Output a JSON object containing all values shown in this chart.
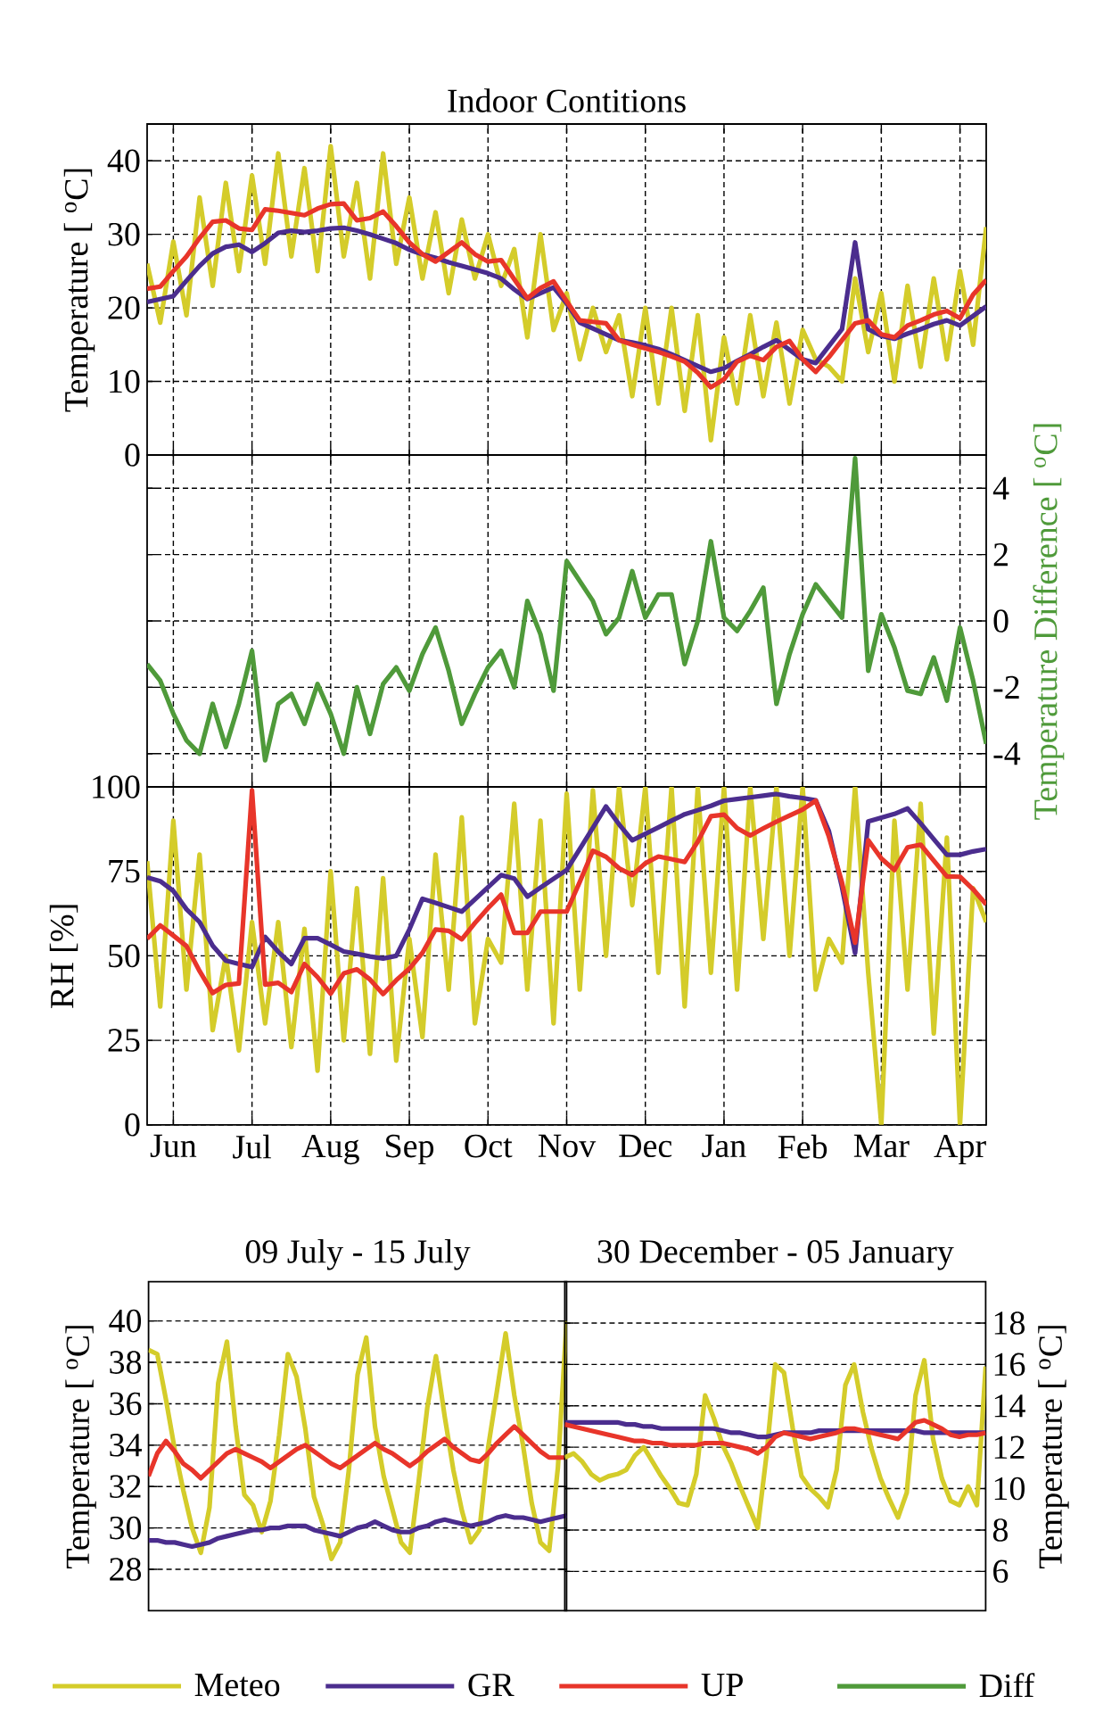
{
  "chart_data": [
    {
      "type": "line",
      "title": "Indoor Contitions",
      "ylabel": "Temperature [ $^{o}$C]",
      "ylim": [
        0,
        45
      ],
      "yticks": [
        0,
        10,
        20,
        30,
        40
      ],
      "categories": [
        null,
        null,
        null,
        null,
        null,
        null,
        null,
        null,
        null,
        null,
        null,
        null,
        null,
        null,
        null,
        null,
        null,
        null,
        null,
        null,
        null,
        null,
        null,
        null,
        null,
        null,
        null,
        null,
        null,
        null,
        null,
        null,
        null,
        null,
        null,
        null,
        null,
        null,
        null,
        null,
        null,
        null,
        null,
        null,
        null,
        null,
        null,
        null,
        null,
        null,
        null,
        null,
        null,
        null,
        null,
        null,
        null,
        null,
        null,
        null,
        null,
        null,
        null,
        null,
        null
      ],
      "grid": true,
      "tick_labels": "y",
      "legend": "bottom",
      "marker": "none",
      "line_style": "solid",
      "series": [
        {
          "name": "Meteo",
          "color": "#d4cc2a",
          "values": [
            26,
            18,
            29,
            19,
            35,
            23,
            37,
            25,
            38,
            26,
            41,
            27,
            39,
            25,
            42,
            27,
            37,
            24,
            41,
            26,
            35,
            24,
            33,
            22,
            32,
            24,
            30,
            23,
            28,
            16,
            30,
            17,
            22,
            13,
            20,
            14,
            19,
            8,
            20,
            7,
            20,
            6,
            19,
            2,
            16,
            7,
            19,
            8,
            18,
            7,
            17,
            13,
            12,
            10,
            24,
            14,
            22,
            10,
            23,
            12,
            24,
            13,
            25,
            15,
            31
          ]
        },
        {
          "name": "GR",
          "color": "#4b2d8e",
          "values": [
            20.8,
            21.2,
            21.6,
            23.7,
            25.7,
            27.4,
            28.3,
            28.6,
            27.6,
            28.8,
            30.2,
            30.5,
            30.3,
            30.5,
            30.8,
            30.9,
            30.5,
            30.0,
            29.4,
            28.8,
            27.9,
            27.3,
            26.8,
            26.2,
            25.7,
            25.2,
            24.7,
            24.0,
            22.5,
            21.2,
            22.0,
            22.8,
            20.6,
            18.0,
            17.2,
            16.4,
            15.6,
            15.3,
            14.9,
            14.4,
            13.7,
            12.9,
            12.1,
            11.3,
            11.8,
            12.8,
            13.7,
            14.7,
            15.6,
            14.3,
            13.0,
            12.5,
            14.8,
            17.1,
            28.9,
            17.1,
            16.2,
            15.8,
            16.5,
            17.1,
            17.8,
            18.3,
            17.6,
            18.9,
            20.2
          ]
        },
        {
          "name": "UP",
          "color": "#e8352a",
          "values": [
            22.6,
            22.9,
            25.0,
            27.0,
            29.5,
            31.7,
            31.9,
            30.8,
            30.6,
            33.4,
            33.2,
            32.9,
            32.6,
            33.5,
            34.1,
            34.2,
            31.9,
            32.2,
            33.1,
            31.1,
            28.9,
            27.3,
            26.3,
            27.6,
            28.9,
            27.3,
            26.3,
            26.5,
            23.9,
            21.3,
            22.7,
            23.6,
            20.9,
            18.3,
            18.1,
            17.9,
            15.6,
            15.0,
            14.5,
            14.0,
            13.4,
            12.7,
            11.2,
            9.2,
            10.3,
            12.7,
            13.5,
            12.9,
            14.7,
            15.5,
            13.0,
            11.3,
            13.3,
            15.6,
            17.9,
            18.3,
            16.4,
            16.0,
            17.6,
            18.3,
            19.1,
            19.6,
            18.6,
            21.8,
            23.8
          ]
        }
      ]
    },
    {
      "type": "line",
      "ylabel": "Temperature Difference [ $^{o}$C]",
      "ylim": [
        -5,
        5
      ],
      "yticks": [
        -4,
        -2,
        0,
        2,
        4
      ],
      "categories": [
        null,
        null,
        null,
        null,
        null,
        null,
        null,
        null,
        null,
        null,
        null,
        null,
        null,
        null,
        null,
        null,
        null,
        null,
        null,
        null,
        null,
        null,
        null,
        null,
        null,
        null,
        null,
        null,
        null,
        null,
        null,
        null,
        null,
        null,
        null,
        null,
        null,
        null,
        null,
        null,
        null,
        null,
        null,
        null,
        null,
        null,
        null,
        null,
        null,
        null,
        null,
        null,
        null,
        null,
        null,
        null,
        null,
        null,
        null,
        null,
        null,
        null,
        null,
        null,
        null
      ],
      "grid": true,
      "tick_labels": "y",
      "legend": "bottom",
      "marker": "none",
      "line_style": "solid",
      "series": [
        {
          "name": "Diff",
          "color": "#4f9a3a",
          "values": [
            -1.3,
            -1.8,
            -2.8,
            -3.6,
            -4.0,
            -2.5,
            -3.8,
            -2.5,
            -0.9,
            -4.2,
            -2.5,
            -2.2,
            -3.1,
            -1.9,
            -2.8,
            -4.0,
            -2.0,
            -3.4,
            -1.9,
            -1.4,
            -2.1,
            -1.0,
            -0.2,
            -1.5,
            -3.1,
            -2.2,
            -1.4,
            -0.9,
            -2.0,
            0.6,
            -0.4,
            -2.1,
            1.8,
            1.2,
            0.6,
            -0.4,
            0.1,
            1.5,
            0.1,
            0.8,
            0.8,
            -1.3,
            0.0,
            2.4,
            0.1,
            -0.3,
            0.3,
            1.0,
            -2.5,
            -1.0,
            0.2,
            1.1,
            0.6,
            0.1,
            4.9,
            -1.5,
            0.2,
            -0.8,
            -2.1,
            -2.2,
            -1.1,
            -2.4,
            -0.2,
            -1.8,
            -3.7
          ]
        }
      ]
    },
    {
      "type": "line",
      "ylabel": "RH [%]",
      "ylim": [
        0,
        100
      ],
      "yticks": [
        0,
        25,
        50,
        75,
        100
      ],
      "categories": [
        null,
        null,
        "Jun",
        null,
        null,
        null,
        null,
        null,
        "Jul",
        null,
        null,
        null,
        null,
        null,
        "Aug",
        null,
        null,
        null,
        null,
        null,
        "Sep",
        null,
        null,
        null,
        null,
        null,
        "Oct",
        null,
        null,
        null,
        null,
        null,
        "Nov",
        null,
        null,
        null,
        null,
        null,
        "Dec",
        null,
        null,
        null,
        null,
        null,
        "Jan",
        null,
        null,
        null,
        null,
        null,
        "Feb",
        null,
        null,
        null,
        null,
        null,
        "Mar",
        null,
        null,
        null,
        null,
        null,
        "Apr",
        null,
        null
      ],
      "grid": true,
      "marker": "none",
      "line_style": "solid",
      "series": [
        {
          "color": "#d4cc2a",
          "values": [
            78,
            35,
            90,
            40,
            80,
            28,
            50,
            22,
            60,
            30,
            60,
            23,
            58,
            16,
            75,
            25,
            70,
            21,
            73,
            19,
            55,
            26,
            80,
            40,
            91,
            30,
            55,
            48,
            95,
            40,
            90,
            30,
            98,
            40,
            99,
            50,
            100,
            65,
            100,
            45,
            100,
            35,
            100,
            45,
            100,
            40,
            100,
            55,
            100,
            50,
            100,
            40,
            55,
            48,
            100,
            45,
            0,
            90,
            40,
            95,
            27,
            85,
            0,
            70,
            60
          ]
        },
        {
          "color": "#4b2d8e",
          "values": [
            73.2,
            72.1,
            69.2,
            63.8,
            60.0,
            53.0,
            48.6,
            47.6,
            46.7,
            55.6,
            51.2,
            47.6,
            55.2,
            55.2,
            53.3,
            51.3,
            50.6,
            49.8,
            49.2,
            50.0,
            57.8,
            66.9,
            65.7,
            64.4,
            63.1,
            66.7,
            70.3,
            73.9,
            72.9,
            67.5,
            70.2,
            72.8,
            75.4,
            81.6,
            87.9,
            94.2,
            88.9,
            84.2,
            86.1,
            88.0,
            90.0,
            91.9,
            93.1,
            94.4,
            95.9,
            96.4,
            96.9,
            97.4,
            97.9,
            97.2,
            96.7,
            96.0,
            86.9,
            70.3,
            50.8,
            89.8,
            90.9,
            92.0,
            93.6,
            89.2,
            84.5,
            79.9,
            79.9,
            80.9,
            81.6
          ]
        },
        {
          "color": "#e8352a",
          "values": [
            55.1,
            59,
            56,
            52.9,
            45.5,
            39,
            41.4,
            41.8,
            99,
            41.5,
            42.0,
            39.3,
            47.6,
            43.7,
            38.8,
            44.8,
            46.0,
            43.0,
            38.7,
            42.8,
            46.2,
            50.9,
            57.8,
            57.4,
            54.9,
            59.7,
            64.1,
            68.1,
            56.8,
            56.8,
            63.1,
            63.1,
            63.1,
            71.9,
            81.1,
            79.3,
            75.9,
            73.9,
            77.4,
            79.4,
            78.6,
            77.8,
            83.8,
            91.3,
            91.8,
            87.8,
            85.6,
            87.7,
            89.7,
            91.5,
            93.3,
            95.9,
            85.3,
            71.7,
            53.9,
            84.2,
            78.8,
            75.4,
            82.1,
            82.9,
            78.2,
            73.5,
            73.4,
            69.7,
            65.2
          ]
        }
      ]
    },
    {
      "type": "line",
      "title": "09 July - 15 July",
      "ylabel": "Temperature [ $^{o}$C]",
      "ylim": [
        26,
        41.9
      ],
      "yticks": [
        28,
        30,
        32,
        34,
        36,
        38,
        40
      ],
      "categories": [
        null,
        null,
        null,
        null,
        null,
        null,
        null,
        null,
        null,
        null,
        null,
        null,
        null,
        null,
        null,
        null,
        null,
        null,
        null,
        null,
        null,
        null,
        null,
        null,
        null,
        null,
        null,
        null,
        null,
        null,
        null,
        null,
        null,
        null,
        null,
        null,
        null,
        null,
        null,
        null,
        null,
        null,
        null,
        null,
        null,
        null,
        null,
        null,
        null
      ],
      "grid": "y",
      "tick_labels": "y",
      "marker": "none",
      "line_style": "solid",
      "series": [
        {
          "color": "#d4cc2a",
          "values": [
            38.6,
            38.4,
            36.2,
            33.8,
            31.8,
            30.0,
            28.8,
            31.0,
            37.0,
            39.0,
            34.9,
            31.6,
            31.1,
            29.8,
            31.3,
            34.5,
            38.4,
            37.3,
            34.8,
            31.5,
            30.2,
            28.5,
            29.3,
            32.8,
            37.4,
            39.2,
            34.9,
            32.5,
            30.9,
            29.3,
            28.8,
            32.2,
            35.8,
            38.3,
            35.4,
            32.8,
            30.8,
            29.3,
            29.9,
            33.9,
            36.6,
            39.4,
            36.4,
            34.0,
            31.2,
            29.3,
            28.9,
            32.9,
            40.0
          ]
        },
        {
          "color": "#4b2d8e",
          "values": [
            29.4,
            29.4,
            29.3,
            29.3,
            29.2,
            29.1,
            29.2,
            29.3,
            29.5,
            29.6,
            29.7,
            29.8,
            29.9,
            29.9,
            30.0,
            30.0,
            30.1,
            30.1,
            30.1,
            29.9,
            29.8,
            29.7,
            29.6,
            29.8,
            30.0,
            30.1,
            30.3,
            30.1,
            29.9,
            29.8,
            29.8,
            30.0,
            30.1,
            30.3,
            30.4,
            30.3,
            30.2,
            30.1,
            30.2,
            30.3,
            30.5,
            30.6,
            30.5,
            30.5,
            30.4,
            30.3,
            30.4,
            30.5,
            30.6
          ]
        },
        {
          "color": "#e8352a",
          "values": [
            32.5,
            33.6,
            34.2,
            33.7,
            33.1,
            32.8,
            32.4,
            32.8,
            33.2,
            33.6,
            33.8,
            33.6,
            33.4,
            33.2,
            32.9,
            33.2,
            33.5,
            33.8,
            34.0,
            33.7,
            33.4,
            33.1,
            32.9,
            33.2,
            33.5,
            33.8,
            34.1,
            33.8,
            33.6,
            33.3,
            33.0,
            33.3,
            33.7,
            34.0,
            34.3,
            33.9,
            33.6,
            33.3,
            33.2,
            33.6,
            34.1,
            34.5,
            34.9,
            34.5,
            34.1,
            33.7,
            33.4,
            33.4,
            33.4
          ]
        }
      ]
    },
    {
      "type": "line",
      "title": "30 December - 05 January",
      "ylabel": "Temperature [ $^{o}$C]",
      "ylim": [
        4.1,
        20
      ],
      "yticks": [
        6,
        8,
        10,
        12,
        14,
        16,
        18
      ],
      "categories": [
        null,
        null,
        null,
        null,
        null,
        null,
        null,
        null,
        null,
        null,
        null,
        null,
        null,
        null,
        null,
        null,
        null,
        null,
        null,
        null,
        null,
        null,
        null,
        null,
        null,
        null,
        null,
        null,
        null,
        null,
        null,
        null,
        null,
        null,
        null,
        null,
        null,
        null,
        null,
        null,
        null,
        null,
        null,
        null,
        null,
        null,
        null,
        null,
        null
      ],
      "grid": "y",
      "tick_labels": "y",
      "marker": "none",
      "line_style": "solid",
      "series": [
        {
          "color": "#d4cc2a",
          "values": [
            11.5,
            11.7,
            11.3,
            10.7,
            10.4,
            10.6,
            10.7,
            10.9,
            11.6,
            12.0,
            11.3,
            10.6,
            10.0,
            9.3,
            9.2,
            10.7,
            14.5,
            13.4,
            12.1,
            11.2,
            10.1,
            9.1,
            8.1,
            11.6,
            16.0,
            15.6,
            12.9,
            10.6,
            10.0,
            9.6,
            9.1,
            10.9,
            15.0,
            16.0,
            13.7,
            11.9,
            10.5,
            9.5,
            8.6,
            9.8,
            14.5,
            16.2,
            12.4,
            10.5,
            9.4,
            9.2,
            10.1,
            9.2,
            15.9
          ]
        },
        {
          "color": "#4b2d8e",
          "values": [
            13.2,
            13.2,
            13.2,
            13.2,
            13.2,
            13.2,
            13.2,
            13.1,
            13.1,
            13.0,
            13.0,
            12.9,
            12.9,
            12.9,
            12.9,
            12.9,
            12.9,
            12.9,
            12.8,
            12.7,
            12.7,
            12.6,
            12.5,
            12.5,
            12.6,
            12.7,
            12.7,
            12.7,
            12.7,
            12.8,
            12.8,
            12.8,
            12.8,
            12.8,
            12.8,
            12.8,
            12.8,
            12.8,
            12.8,
            12.8,
            12.8,
            12.7,
            12.7,
            12.7,
            12.7,
            12.7,
            12.7,
            12.7,
            12.7
          ]
        },
        {
          "color": "#e8352a",
          "values": [
            13.1,
            13.0,
            12.9,
            12.8,
            12.7,
            12.6,
            12.5,
            12.4,
            12.3,
            12.3,
            12.2,
            12.2,
            12.1,
            12.1,
            12.1,
            12.1,
            12.2,
            12.2,
            12.2,
            12.1,
            12.0,
            11.9,
            11.7,
            12.0,
            12.5,
            12.7,
            12.6,
            12.5,
            12.4,
            12.5,
            12.6,
            12.7,
            12.9,
            12.9,
            12.8,
            12.7,
            12.6,
            12.5,
            12.4,
            12.8,
            13.2,
            13.3,
            13.1,
            12.9,
            12.6,
            12.5,
            12.6,
            12.6,
            12.7
          ]
        }
      ]
    }
  ]
}
